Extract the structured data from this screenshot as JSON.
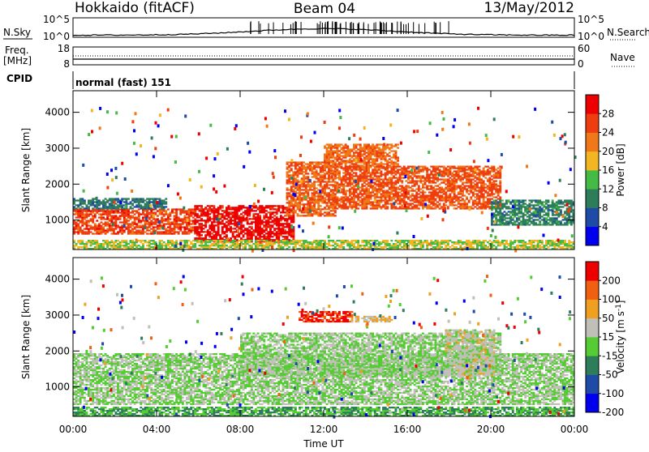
{
  "header": {
    "title": "Hokkaido (fitACF)",
    "beam": "Beam 04",
    "date": "13/May/2012"
  },
  "status_panels": {
    "nsky_label": "N.Sky",
    "nsearch_label": "N.Search",
    "count_ticks_left": [
      "10^5",
      "10^0"
    ],
    "count_ticks_right": [
      "10^5",
      "10^0"
    ],
    "freq_label": "Freq.",
    "freq_unit": "[MHz]",
    "freq_ticks": [
      "18",
      "8"
    ],
    "nave_label": "Nave",
    "nave_ticks": [
      "60",
      "0"
    ],
    "cpid_label": "CPID",
    "cpid_value": "normal (fast) 151"
  },
  "chart_data": [
    {
      "type": "heatmap",
      "name": "power",
      "ylabel": "Slant Range [km]",
      "xlabel": "Time UT",
      "xlim": [
        0,
        24
      ],
      "ylim": [
        180,
        4600
      ],
      "x_ticks": [
        "00:00",
        "04:00",
        "08:00",
        "12:00",
        "16:00",
        "20:00",
        "00:00"
      ],
      "y_ticks": [
        "1000",
        "2000",
        "3000",
        "4000"
      ],
      "colorbar": {
        "label": "Power [dB]",
        "ticks": [
          "4",
          "8",
          "12",
          "16",
          "20",
          "24",
          "28"
        ],
        "colors": [
          "#0000ee",
          "#1e4aa8",
          "#2e7d5a",
          "#44bb44",
          "#f2b622",
          "#f07818",
          "#ee3e10",
          "#ee0000"
        ],
        "range": [
          0,
          32
        ]
      },
      "regions": [
        {
          "t0": 0.0,
          "t1": 5.8,
          "r0": 600,
          "r1": 1300,
          "value": 26
        },
        {
          "t0": 5.8,
          "t1": 10.5,
          "r0": 380,
          "r1": 1400,
          "value": 30
        },
        {
          "t0": 10.2,
          "t1": 12.5,
          "r0": 1100,
          "r1": 2600,
          "value": 24
        },
        {
          "t0": 12.0,
          "t1": 15.5,
          "r0": 2450,
          "r1": 3100,
          "value": 23
        },
        {
          "t0": 12.5,
          "t1": 20.5,
          "r0": 1300,
          "r1": 2500,
          "value": 25
        },
        {
          "t0": 20.0,
          "t1": 24.0,
          "r0": 850,
          "r1": 1550,
          "value": 10
        },
        {
          "t0": 0.0,
          "t1": 4.5,
          "r0": 1300,
          "r1": 1600,
          "value": 9
        },
        {
          "t0": 0.0,
          "t1": 24.0,
          "r0": 180,
          "r1": 420,
          "value": 16
        }
      ]
    },
    {
      "type": "heatmap",
      "name": "velocity",
      "ylabel": "Slant Range [km]",
      "xlabel": "Time UT",
      "xlim": [
        0,
        24
      ],
      "ylim": [
        180,
        4600
      ],
      "x_ticks": [
        "00:00",
        "04:00",
        "08:00",
        "12:00",
        "16:00",
        "20:00",
        "00:00"
      ],
      "y_ticks": [
        "1000",
        "2000",
        "3000",
        "4000"
      ],
      "colorbar": {
        "label": "Velocity [m s^-1]",
        "ticks": [
          "200",
          "100",
          "50",
          "15",
          "-15",
          "-50",
          "-100",
          "-200"
        ],
        "colors": [
          "#0000ee",
          "#1e4aa8",
          "#2e7d5a",
          "#55cc33",
          "#c0c0b8",
          "#f0a020",
          "#f06010",
          "#ee0000"
        ],
        "range": [
          -250,
          250
        ]
      },
      "regions": [
        {
          "t0": 0.0,
          "t1": 24.0,
          "r0": 500,
          "r1": 1900,
          "value": 0
        },
        {
          "t0": 8.0,
          "t1": 20.5,
          "r0": 1300,
          "r1": 2500,
          "value": 0
        },
        {
          "t0": 10.8,
          "t1": 13.3,
          "r0": 2800,
          "r1": 3100,
          "value": 200
        },
        {
          "t0": 13.3,
          "t1": 15.2,
          "r0": 2800,
          "r1": 2950,
          "value": 60
        },
        {
          "t0": 17.8,
          "t1": 20.2,
          "r0": 1300,
          "r1": 2600,
          "value": 30
        },
        {
          "t0": 0.0,
          "t1": 24.0,
          "r0": 180,
          "r1": 420,
          "value": -60
        }
      ]
    }
  ]
}
